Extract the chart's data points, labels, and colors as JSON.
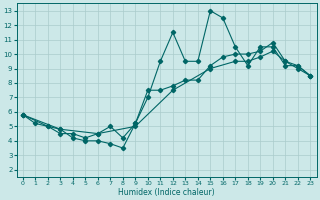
{
  "xlabel": "Humidex (Indice chaleur)",
  "xlim": [
    -0.5,
    23.5
  ],
  "ylim": [
    1.5,
    13.5
  ],
  "xticks": [
    0,
    1,
    2,
    3,
    4,
    5,
    6,
    7,
    8,
    9,
    10,
    11,
    12,
    13,
    14,
    15,
    16,
    17,
    18,
    19,
    20,
    21,
    22,
    23
  ],
  "yticks": [
    2,
    3,
    4,
    5,
    6,
    7,
    8,
    9,
    10,
    11,
    12,
    13
  ],
  "bg_color": "#cce8e8",
  "grid_color": "#aacccc",
  "line_color": "#006666",
  "line1_x": [
    0,
    1,
    2,
    3,
    4,
    5,
    6,
    7,
    8,
    9,
    10,
    11,
    12,
    13,
    14,
    15,
    16,
    17,
    18,
    19,
    20,
    21,
    22,
    23
  ],
  "line1_y": [
    5.8,
    5.2,
    5.0,
    4.8,
    4.2,
    4.0,
    4.0,
    3.8,
    3.5,
    5.2,
    7.0,
    9.5,
    11.5,
    9.5,
    9.5,
    13.0,
    12.5,
    10.5,
    9.2,
    10.5,
    10.5,
    9.2,
    9.2,
    8.5
  ],
  "line2_x": [
    0,
    2,
    3,
    4,
    5,
    6,
    7,
    8,
    9,
    10,
    11,
    12,
    13,
    14,
    15,
    16,
    17,
    18,
    19,
    20,
    21,
    22,
    23
  ],
  "line2_y": [
    5.8,
    5.0,
    4.5,
    4.5,
    4.2,
    4.5,
    5.0,
    4.2,
    5.2,
    7.5,
    7.5,
    7.8,
    8.2,
    8.2,
    9.2,
    9.8,
    10.0,
    10.0,
    10.2,
    10.8,
    9.5,
    9.2,
    8.5
  ],
  "line3_x": [
    0,
    3,
    6,
    9,
    12,
    15,
    17,
    18,
    19,
    20,
    21,
    22,
    23
  ],
  "line3_y": [
    5.8,
    4.8,
    4.5,
    5.0,
    7.5,
    9.0,
    9.5,
    9.5,
    9.8,
    10.2,
    9.5,
    9.0,
    8.5
  ]
}
